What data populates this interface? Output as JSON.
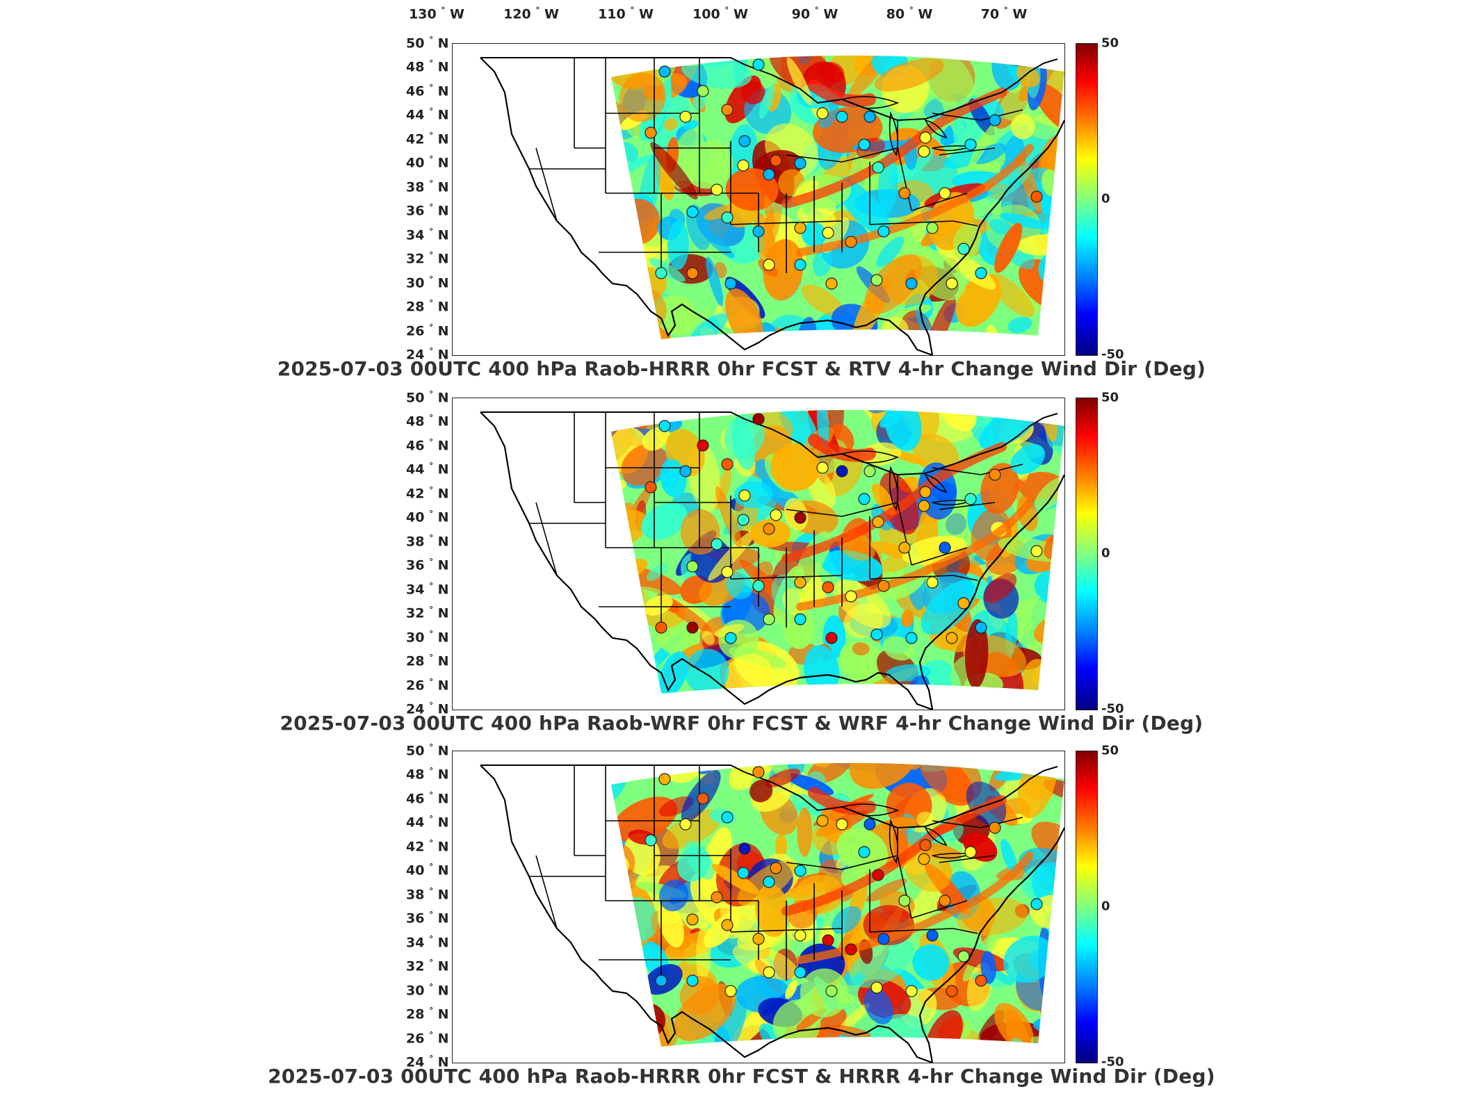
{
  "lon_labels": [
    "130",
    "120",
    "110",
    "100",
    "90",
    "80",
    "70"
  ],
  "lon_suffix": "W",
  "lat_labels": [
    "50",
    "48",
    "46",
    "44",
    "42",
    "40",
    "38",
    "36",
    "34",
    "32",
    "30",
    "28",
    "26",
    "24"
  ],
  "lat_suffix": "N",
  "degree_symbol": "°",
  "colorbar": {
    "max": "50",
    "mid": "0",
    "min": "-50",
    "colormap": "jet"
  },
  "panels": [
    {
      "title": "2025-07-03 00UTC 400 hPa Raob-HRRR 0hr FCST & RTV 4-hr Change Wind Dir (Deg)"
    },
    {
      "title": "2025-07-03 00UTC 400 hPa Raob-WRF 0hr FCST & WRF 4-hr Change Wind Dir (Deg)"
    },
    {
      "title": "2025-07-03 00UTC 400 hPa Raob-HRRR 0hr FCST & HRRR 4-hr Change Wind Dir (Deg)"
    }
  ],
  "colors": {
    "cold": "#0000ff",
    "cool": "#00ffff",
    "neutral": "#80ff80",
    "warm": "#ffff00",
    "hot": "#ff0000"
  }
}
